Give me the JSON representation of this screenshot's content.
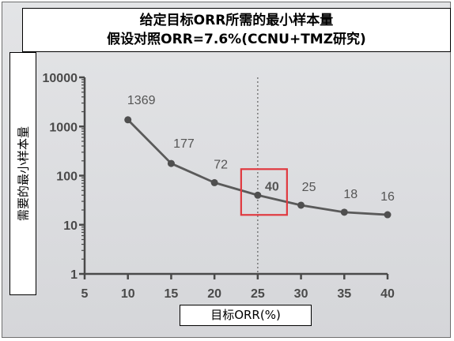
{
  "title": {
    "line1": "给定目标ORR所需的最小样本量",
    "line2": "假设对照ORR=7.6%(CCNU+TMZ研究)"
  },
  "chart_data": {
    "type": "line",
    "xlabel": "目标ORR(%)",
    "ylabel": "需要的最小样本量",
    "x": [
      10,
      15,
      20,
      25,
      30,
      35,
      40
    ],
    "values": [
      1369,
      177,
      72,
      40,
      25,
      18,
      16
    ],
    "data_labels": [
      "1369",
      "177",
      "72",
      "40",
      "25",
      "18",
      "16"
    ],
    "highlight": {
      "x": 25,
      "label": "40"
    },
    "reference_line_x": 25,
    "xlim": [
      5,
      40
    ],
    "ylim": [
      1,
      10000
    ],
    "y_scale": "log",
    "x_ticks": [
      "5",
      "10",
      "15",
      "20",
      "25",
      "30",
      "35",
      "40"
    ],
    "y_ticks": [
      "1",
      "10",
      "100",
      "1000",
      "10000"
    ],
    "colors": {
      "line": "#5a5a5a",
      "marker": "#4f4f4f",
      "highlight": "#e0393f",
      "axis": "#4a4a4a"
    }
  }
}
